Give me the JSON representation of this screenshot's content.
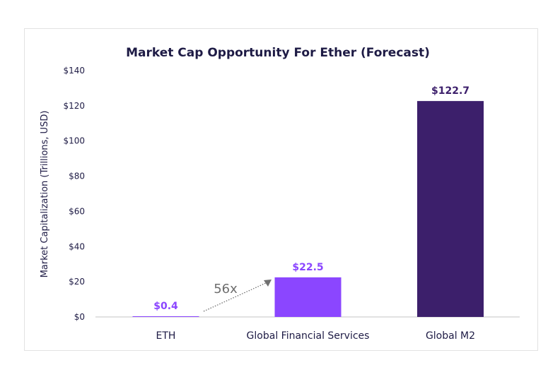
{
  "chart_data": {
    "type": "bar",
    "title": "Market Cap Opportunity For Ether (Forecast)",
    "xlabel": "",
    "ylabel": "Market Capitalization (Trillions, USD)",
    "ylim": [
      0,
      140
    ],
    "yticks": [
      0,
      20,
      40,
      60,
      80,
      100,
      120,
      140
    ],
    "ytick_labels": [
      "$0",
      "$20",
      "$40",
      "$60",
      "$80",
      "$100",
      "$120",
      "$140"
    ],
    "grid": false,
    "categories": [
      "ETH",
      "Global Financial Services",
      "Global M2"
    ],
    "values": [
      0.4,
      22.5,
      122.7
    ],
    "data_labels": [
      "$0.4",
      "$22.5",
      "$122.7"
    ],
    "bar_colors": [
      "#8b46ff",
      "#8b46ff",
      "#3c1f6b"
    ],
    "label_colors": [
      "#8b46ff",
      "#8b46ff",
      "#3c1f6b"
    ],
    "annotation": {
      "text": "56x",
      "from": "ETH",
      "to": "Global Financial Services",
      "style": "dotted-arrow"
    }
  }
}
